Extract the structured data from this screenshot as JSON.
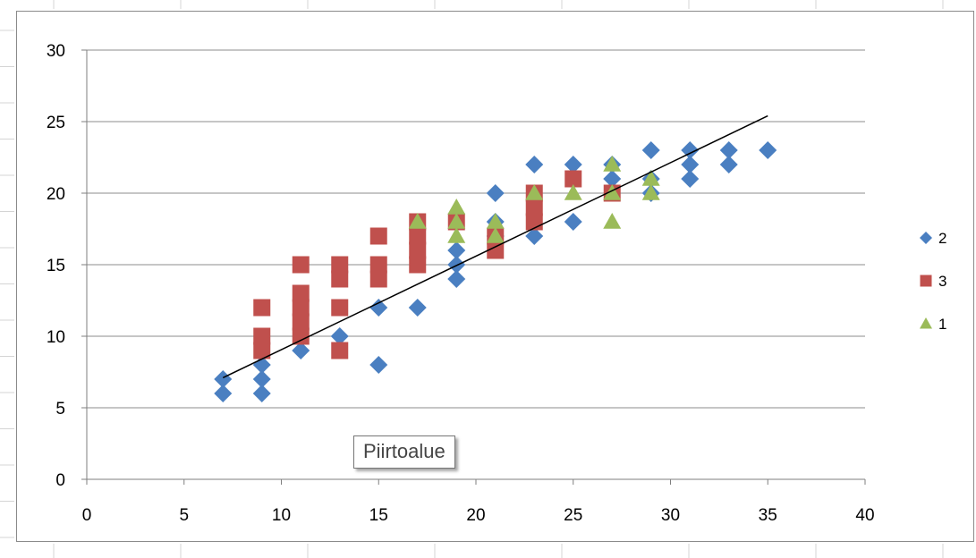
{
  "header_text": "",
  "colors": {
    "series_2": "#4a7fc1",
    "series_3": "#c0504d",
    "series_1": "#9bbb59",
    "trendline": "#000000",
    "gridline": "#8c8c8c"
  },
  "tooltip": {
    "text": "Piirtoalue"
  },
  "chart_data": {
    "type": "scatter",
    "title": "",
    "xlabel": "",
    "ylabel": "",
    "xlim": [
      0,
      40
    ],
    "ylim": [
      0,
      30
    ],
    "x_ticks": [
      0,
      5,
      10,
      15,
      20,
      25,
      30,
      35,
      40
    ],
    "y_ticks": [
      0,
      5,
      10,
      15,
      20,
      25,
      30
    ],
    "grid": "horizontal",
    "legend_position": "right",
    "series": [
      {
        "name": "2",
        "marker": "diamond",
        "color": "#4a7fc1",
        "points": [
          [
            7,
            7
          ],
          [
            7,
            6
          ],
          [
            9,
            8
          ],
          [
            9,
            7
          ],
          [
            9,
            6
          ],
          [
            11,
            9
          ],
          [
            13,
            10
          ],
          [
            15,
            12
          ],
          [
            15,
            8
          ],
          [
            17,
            12
          ],
          [
            19,
            16
          ],
          [
            19,
            15
          ],
          [
            19,
            14
          ],
          [
            21,
            20
          ],
          [
            21,
            18
          ],
          [
            21,
            17
          ],
          [
            23,
            22
          ],
          [
            23,
            17
          ],
          [
            25,
            22
          ],
          [
            25,
            18
          ],
          [
            27,
            22
          ],
          [
            27,
            21
          ],
          [
            29,
            23
          ],
          [
            29,
            21
          ],
          [
            29,
            20
          ],
          [
            31,
            23
          ],
          [
            31,
            22
          ],
          [
            31,
            21
          ],
          [
            33,
            23
          ],
          [
            33,
            22
          ],
          [
            35,
            23
          ]
        ]
      },
      {
        "name": "3",
        "marker": "square",
        "color": "#c0504d",
        "points": [
          [
            9,
            12
          ],
          [
            9,
            10
          ],
          [
            9,
            9
          ],
          [
            11,
            15
          ],
          [
            11,
            13
          ],
          [
            11,
            12
          ],
          [
            11,
            11
          ],
          [
            11,
            10
          ],
          [
            13,
            15
          ],
          [
            13,
            14
          ],
          [
            13,
            12
          ],
          [
            13,
            9
          ],
          [
            15,
            17
          ],
          [
            15,
            15
          ],
          [
            15,
            14
          ],
          [
            17,
            18
          ],
          [
            17,
            17
          ],
          [
            17,
            16
          ],
          [
            17,
            15
          ],
          [
            19,
            18
          ],
          [
            21,
            17
          ],
          [
            21,
            16
          ],
          [
            23,
            20
          ],
          [
            23,
            19
          ],
          [
            23,
            18
          ],
          [
            25,
            21
          ],
          [
            27,
            20
          ]
        ]
      },
      {
        "name": "1",
        "marker": "triangle",
        "color": "#9bbb59",
        "points": [
          [
            17,
            18
          ],
          [
            19,
            19
          ],
          [
            19,
            18
          ],
          [
            19,
            17
          ],
          [
            21,
            18
          ],
          [
            21,
            17
          ],
          [
            23,
            20
          ],
          [
            25,
            20
          ],
          [
            27,
            22
          ],
          [
            27,
            20
          ],
          [
            27,
            18
          ],
          [
            29,
            21
          ],
          [
            29,
            20
          ]
        ]
      }
    ],
    "trendline": {
      "type": "linear",
      "from": [
        7,
        7.1
      ],
      "to": [
        35,
        25.4
      ]
    }
  }
}
